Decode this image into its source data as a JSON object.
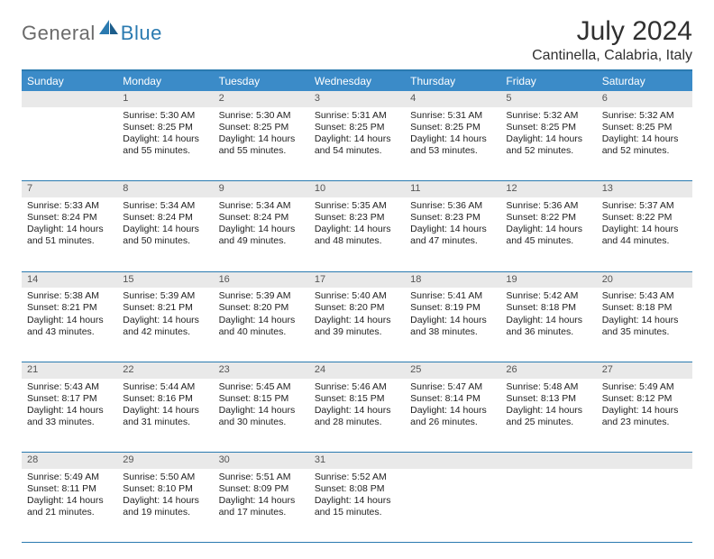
{
  "logo": {
    "general": "General",
    "blue": "Blue"
  },
  "title": "July 2024",
  "location": "Cantinella, Calabria, Italy",
  "colors": {
    "header_bg": "#3b8bc8",
    "rule": "#2a7ab0",
    "daynum_bg": "#e9e9e9",
    "text": "#222222"
  },
  "weekdays": [
    "Sunday",
    "Monday",
    "Tuesday",
    "Wednesday",
    "Thursday",
    "Friday",
    "Saturday"
  ],
  "weeks": [
    {
      "nums": [
        "",
        "1",
        "2",
        "3",
        "4",
        "5",
        "6"
      ],
      "cells": [
        null,
        {
          "sunrise": "Sunrise: 5:30 AM",
          "sunset": "Sunset: 8:25 PM",
          "day1": "Daylight: 14 hours",
          "day2": "and 55 minutes."
        },
        {
          "sunrise": "Sunrise: 5:30 AM",
          "sunset": "Sunset: 8:25 PM",
          "day1": "Daylight: 14 hours",
          "day2": "and 55 minutes."
        },
        {
          "sunrise": "Sunrise: 5:31 AM",
          "sunset": "Sunset: 8:25 PM",
          "day1": "Daylight: 14 hours",
          "day2": "and 54 minutes."
        },
        {
          "sunrise": "Sunrise: 5:31 AM",
          "sunset": "Sunset: 8:25 PM",
          "day1": "Daylight: 14 hours",
          "day2": "and 53 minutes."
        },
        {
          "sunrise": "Sunrise: 5:32 AM",
          "sunset": "Sunset: 8:25 PM",
          "day1": "Daylight: 14 hours",
          "day2": "and 52 minutes."
        },
        {
          "sunrise": "Sunrise: 5:32 AM",
          "sunset": "Sunset: 8:25 PM",
          "day1": "Daylight: 14 hours",
          "day2": "and 52 minutes."
        }
      ]
    },
    {
      "nums": [
        "7",
        "8",
        "9",
        "10",
        "11",
        "12",
        "13"
      ],
      "cells": [
        {
          "sunrise": "Sunrise: 5:33 AM",
          "sunset": "Sunset: 8:24 PM",
          "day1": "Daylight: 14 hours",
          "day2": "and 51 minutes."
        },
        {
          "sunrise": "Sunrise: 5:34 AM",
          "sunset": "Sunset: 8:24 PM",
          "day1": "Daylight: 14 hours",
          "day2": "and 50 minutes."
        },
        {
          "sunrise": "Sunrise: 5:34 AM",
          "sunset": "Sunset: 8:24 PM",
          "day1": "Daylight: 14 hours",
          "day2": "and 49 minutes."
        },
        {
          "sunrise": "Sunrise: 5:35 AM",
          "sunset": "Sunset: 8:23 PM",
          "day1": "Daylight: 14 hours",
          "day2": "and 48 minutes."
        },
        {
          "sunrise": "Sunrise: 5:36 AM",
          "sunset": "Sunset: 8:23 PM",
          "day1": "Daylight: 14 hours",
          "day2": "and 47 minutes."
        },
        {
          "sunrise": "Sunrise: 5:36 AM",
          "sunset": "Sunset: 8:22 PM",
          "day1": "Daylight: 14 hours",
          "day2": "and 45 minutes."
        },
        {
          "sunrise": "Sunrise: 5:37 AM",
          "sunset": "Sunset: 8:22 PM",
          "day1": "Daylight: 14 hours",
          "day2": "and 44 minutes."
        }
      ]
    },
    {
      "nums": [
        "14",
        "15",
        "16",
        "17",
        "18",
        "19",
        "20"
      ],
      "cells": [
        {
          "sunrise": "Sunrise: 5:38 AM",
          "sunset": "Sunset: 8:21 PM",
          "day1": "Daylight: 14 hours",
          "day2": "and 43 minutes."
        },
        {
          "sunrise": "Sunrise: 5:39 AM",
          "sunset": "Sunset: 8:21 PM",
          "day1": "Daylight: 14 hours",
          "day2": "and 42 minutes."
        },
        {
          "sunrise": "Sunrise: 5:39 AM",
          "sunset": "Sunset: 8:20 PM",
          "day1": "Daylight: 14 hours",
          "day2": "and 40 minutes."
        },
        {
          "sunrise": "Sunrise: 5:40 AM",
          "sunset": "Sunset: 8:20 PM",
          "day1": "Daylight: 14 hours",
          "day2": "and 39 minutes."
        },
        {
          "sunrise": "Sunrise: 5:41 AM",
          "sunset": "Sunset: 8:19 PM",
          "day1": "Daylight: 14 hours",
          "day2": "and 38 minutes."
        },
        {
          "sunrise": "Sunrise: 5:42 AM",
          "sunset": "Sunset: 8:18 PM",
          "day1": "Daylight: 14 hours",
          "day2": "and 36 minutes."
        },
        {
          "sunrise": "Sunrise: 5:43 AM",
          "sunset": "Sunset: 8:18 PM",
          "day1": "Daylight: 14 hours",
          "day2": "and 35 minutes."
        }
      ]
    },
    {
      "nums": [
        "21",
        "22",
        "23",
        "24",
        "25",
        "26",
        "27"
      ],
      "cells": [
        {
          "sunrise": "Sunrise: 5:43 AM",
          "sunset": "Sunset: 8:17 PM",
          "day1": "Daylight: 14 hours",
          "day2": "and 33 minutes."
        },
        {
          "sunrise": "Sunrise: 5:44 AM",
          "sunset": "Sunset: 8:16 PM",
          "day1": "Daylight: 14 hours",
          "day2": "and 31 minutes."
        },
        {
          "sunrise": "Sunrise: 5:45 AM",
          "sunset": "Sunset: 8:15 PM",
          "day1": "Daylight: 14 hours",
          "day2": "and 30 minutes."
        },
        {
          "sunrise": "Sunrise: 5:46 AM",
          "sunset": "Sunset: 8:15 PM",
          "day1": "Daylight: 14 hours",
          "day2": "and 28 minutes."
        },
        {
          "sunrise": "Sunrise: 5:47 AM",
          "sunset": "Sunset: 8:14 PM",
          "day1": "Daylight: 14 hours",
          "day2": "and 26 minutes."
        },
        {
          "sunrise": "Sunrise: 5:48 AM",
          "sunset": "Sunset: 8:13 PM",
          "day1": "Daylight: 14 hours",
          "day2": "and 25 minutes."
        },
        {
          "sunrise": "Sunrise: 5:49 AM",
          "sunset": "Sunset: 8:12 PM",
          "day1": "Daylight: 14 hours",
          "day2": "and 23 minutes."
        }
      ]
    },
    {
      "nums": [
        "28",
        "29",
        "30",
        "31",
        "",
        "",
        ""
      ],
      "cells": [
        {
          "sunrise": "Sunrise: 5:49 AM",
          "sunset": "Sunset: 8:11 PM",
          "day1": "Daylight: 14 hours",
          "day2": "and 21 minutes."
        },
        {
          "sunrise": "Sunrise: 5:50 AM",
          "sunset": "Sunset: 8:10 PM",
          "day1": "Daylight: 14 hours",
          "day2": "and 19 minutes."
        },
        {
          "sunrise": "Sunrise: 5:51 AM",
          "sunset": "Sunset: 8:09 PM",
          "day1": "Daylight: 14 hours",
          "day2": "and 17 minutes."
        },
        {
          "sunrise": "Sunrise: 5:52 AM",
          "sunset": "Sunset: 8:08 PM",
          "day1": "Daylight: 14 hours",
          "day2": "and 15 minutes."
        },
        null,
        null,
        null
      ]
    }
  ]
}
